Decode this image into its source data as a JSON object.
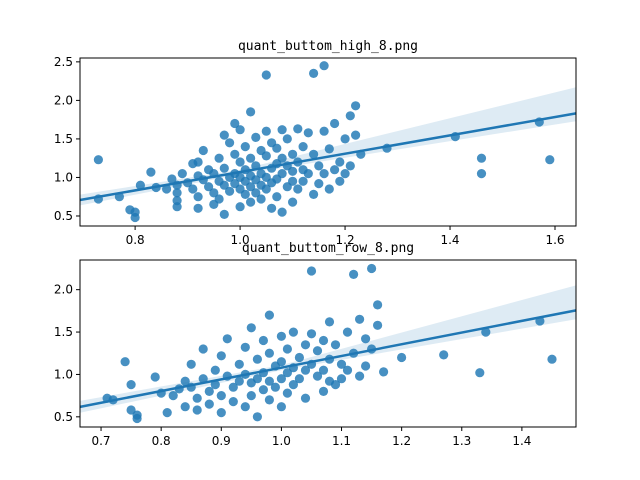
{
  "chart_data": [
    {
      "type": "scatter",
      "title": "quant_buttom_high_8.png",
      "xlabel": "",
      "ylabel": "",
      "xlim": [
        0.695,
        1.64
      ],
      "ylim": [
        0.37,
        2.55
      ],
      "xticks": [
        0.8,
        1.0,
        1.2,
        1.4,
        1.6
      ],
      "xtick_labels": [
        "0.8",
        "1.0",
        "1.2",
        "1.4",
        "1.6"
      ],
      "yticks": [
        0.5,
        1.0,
        1.5,
        2.0,
        2.5
      ],
      "ytick_labels": [
        "0.5",
        "1.0",
        "1.5",
        "2.0",
        "2.5"
      ],
      "grid": false,
      "regression": {
        "slope": 1.19,
        "intercept": -0.12,
        "ci_low_end": 1.73,
        "ci_high_end": 2.17
      },
      "series": [
        {
          "color": "#1f77b4",
          "points": [
            [
              0.73,
              1.23
            ],
            [
              0.73,
              0.72
            ],
            [
              0.77,
              0.75
            ],
            [
              0.79,
              0.58
            ],
            [
              0.8,
              0.55
            ],
            [
              0.8,
              0.48
            ],
            [
              0.81,
              0.9
            ],
            [
              0.83,
              1.07
            ],
            [
              0.84,
              0.87
            ],
            [
              0.86,
              0.85
            ],
            [
              0.87,
              0.98
            ],
            [
              0.88,
              0.9
            ],
            [
              0.88,
              0.8
            ],
            [
              0.88,
              0.7
            ],
            [
              0.88,
              0.62
            ],
            [
              0.89,
              1.05
            ],
            [
              0.9,
              0.93
            ],
            [
              0.91,
              1.18
            ],
            [
              0.91,
              0.85
            ],
            [
              0.92,
              1.2
            ],
            [
              0.92,
              1.02
            ],
            [
              0.92,
              0.75
            ],
            [
              0.92,
              0.6
            ],
            [
              0.93,
              1.35
            ],
            [
              0.93,
              0.97
            ],
            [
              0.94,
              1.1
            ],
            [
              0.94,
              0.88
            ],
            [
              0.95,
              1.05
            ],
            [
              0.95,
              0.8
            ],
            [
              0.95,
              0.65
            ],
            [
              0.96,
              1.25
            ],
            [
              0.96,
              0.95
            ],
            [
              0.96,
              0.72
            ],
            [
              0.97,
              1.55
            ],
            [
              0.97,
              1.12
            ],
            [
              0.97,
              0.9
            ],
            [
              0.97,
              0.52
            ],
            [
              0.98,
              1.45
            ],
            [
              0.98,
              1.0
            ],
            [
              0.98,
              0.82
            ],
            [
              0.99,
              1.7
            ],
            [
              0.99,
              1.3
            ],
            [
              0.99,
              1.05
            ],
            [
              0.99,
              0.92
            ],
            [
              1.0,
              1.62
            ],
            [
              1.0,
              1.2
            ],
            [
              1.0,
              1.0
            ],
            [
              1.0,
              0.85
            ],
            [
              1.0,
              0.62
            ],
            [
              1.01,
              1.4
            ],
            [
              1.01,
              1.1
            ],
            [
              1.01,
              0.95
            ],
            [
              1.01,
              0.78
            ],
            [
              1.02,
              1.85
            ],
            [
              1.02,
              1.25
            ],
            [
              1.02,
              1.02
            ],
            [
              1.02,
              0.88
            ],
            [
              1.02,
              0.68
            ],
            [
              1.03,
              1.52
            ],
            [
              1.03,
              1.15
            ],
            [
              1.03,
              0.97
            ],
            [
              1.03,
              0.8
            ],
            [
              1.04,
              1.35
            ],
            [
              1.04,
              1.05
            ],
            [
              1.04,
              0.9
            ],
            [
              1.04,
              0.72
            ],
            [
              1.05,
              2.33
            ],
            [
              1.05,
              1.6
            ],
            [
              1.05,
              1.28
            ],
            [
              1.05,
              1.0
            ],
            [
              1.05,
              0.85
            ],
            [
              1.06,
              1.45
            ],
            [
              1.06,
              1.12
            ],
            [
              1.06,
              0.93
            ],
            [
              1.06,
              0.6
            ],
            [
              1.07,
              1.38
            ],
            [
              1.07,
              1.18
            ],
            [
              1.07,
              0.98
            ],
            [
              1.07,
              0.75
            ],
            [
              1.08,
              1.62
            ],
            [
              1.08,
              1.25
            ],
            [
              1.08,
              1.05
            ],
            [
              1.08,
              0.55
            ],
            [
              1.09,
              1.5
            ],
            [
              1.09,
              1.15
            ],
            [
              1.09,
              0.88
            ],
            [
              1.1,
              1.3
            ],
            [
              1.1,
              1.08
            ],
            [
              1.1,
              0.95
            ],
            [
              1.1,
              0.68
            ],
            [
              1.11,
              1.63
            ],
            [
              1.11,
              1.2
            ],
            [
              1.11,
              0.85
            ],
            [
              1.12,
              1.4
            ],
            [
              1.12,
              1.1
            ],
            [
              1.12,
              0.95
            ],
            [
              1.13,
              1.58
            ],
            [
              1.13,
              1.05
            ],
            [
              1.14,
              2.35
            ],
            [
              1.14,
              1.3
            ],
            [
              1.14,
              0.78
            ],
            [
              1.15,
              1.15
            ],
            [
              1.15,
              0.92
            ],
            [
              1.16,
              2.45
            ],
            [
              1.16,
              1.6
            ],
            [
              1.16,
              1.05
            ],
            [
              1.17,
              1.37
            ],
            [
              1.17,
              0.85
            ],
            [
              1.18,
              1.7
            ],
            [
              1.18,
              1.1
            ],
            [
              1.19,
              1.2
            ],
            [
              1.19,
              0.95
            ],
            [
              1.2,
              1.5
            ],
            [
              1.2,
              1.05
            ],
            [
              1.21,
              1.8
            ],
            [
              1.21,
              1.15
            ],
            [
              1.22,
              1.93
            ],
            [
              1.22,
              1.55
            ],
            [
              1.23,
              1.3
            ],
            [
              1.28,
              1.38
            ],
            [
              1.41,
              1.53
            ],
            [
              1.46,
              1.25
            ],
            [
              1.46,
              1.05
            ],
            [
              1.57,
              1.72
            ],
            [
              1.59,
              1.23
            ]
          ]
        }
      ]
    },
    {
      "type": "scatter",
      "title": "quant_buttom_row_8.png",
      "xlabel": "",
      "ylabel": "",
      "xlim": [
        0.665,
        1.49
      ],
      "ylim": [
        0.38,
        2.35
      ],
      "xticks": [
        0.7,
        0.8,
        0.9,
        1.0,
        1.1,
        1.2,
        1.3,
        1.4
      ],
      "xtick_labels": [
        "0.7",
        "0.8",
        "0.9",
        "1.0",
        "1.1",
        "1.2",
        "1.3",
        "1.4"
      ],
      "yticks": [
        0.5,
        1.0,
        1.5,
        2.0
      ],
      "ytick_labels": [
        "0.5",
        "1.0",
        "1.5",
        "2.0"
      ],
      "grid": false,
      "regression": {
        "slope": 1.38,
        "intercept": -0.3,
        "ci_low_end": 1.65,
        "ci_high_end": 2.05
      },
      "series": [
        {
          "color": "#1f77b4",
          "points": [
            [
              0.71,
              0.72
            ],
            [
              0.72,
              0.7
            ],
            [
              0.74,
              1.15
            ],
            [
              0.75,
              0.88
            ],
            [
              0.75,
              0.58
            ],
            [
              0.76,
              0.52
            ],
            [
              0.76,
              0.48
            ],
            [
              0.79,
              0.97
            ],
            [
              0.8,
              0.78
            ],
            [
              0.81,
              0.55
            ],
            [
              0.82,
              0.75
            ],
            [
              0.83,
              0.83
            ],
            [
              0.84,
              0.92
            ],
            [
              0.84,
              0.62
            ],
            [
              0.85,
              1.12
            ],
            [
              0.85,
              0.85
            ],
            [
              0.86,
              0.72
            ],
            [
              0.86,
              0.58
            ],
            [
              0.87,
              0.95
            ],
            [
              0.87,
              1.3
            ],
            [
              0.88,
              0.8
            ],
            [
              0.88,
              0.65
            ],
            [
              0.89,
              1.05
            ],
            [
              0.89,
              0.88
            ],
            [
              0.9,
              1.22
            ],
            [
              0.9,
              0.75
            ],
            [
              0.9,
              0.55
            ],
            [
              0.91,
              1.42
            ],
            [
              0.91,
              0.98
            ],
            [
              0.92,
              0.85
            ],
            [
              0.92,
              0.68
            ],
            [
              0.93,
              1.12
            ],
            [
              0.93,
              0.92
            ],
            [
              0.94,
              1.32
            ],
            [
              0.94,
              1.0
            ],
            [
              0.94,
              0.62
            ],
            [
              0.95,
              1.55
            ],
            [
              0.95,
              0.9
            ],
            [
              0.95,
              0.75
            ],
            [
              0.96,
              1.18
            ],
            [
              0.96,
              0.95
            ],
            [
              0.96,
              0.5
            ],
            [
              0.97,
              1.4
            ],
            [
              0.97,
              1.02
            ],
            [
              0.97,
              0.82
            ],
            [
              0.98,
              1.7
            ],
            [
              0.98,
              1.25
            ],
            [
              0.98,
              0.92
            ],
            [
              0.98,
              0.7
            ],
            [
              0.99,
              1.1
            ],
            [
              0.99,
              0.85
            ],
            [
              1.0,
              1.45
            ],
            [
              1.0,
              1.15
            ],
            [
              1.0,
              0.95
            ],
            [
              1.0,
              0.62
            ],
            [
              1.01,
              1.3
            ],
            [
              1.01,
              1.02
            ],
            [
              1.01,
              0.78
            ],
            [
              1.02,
              1.5
            ],
            [
              1.02,
              1.08
            ],
            [
              1.02,
              0.88
            ],
            [
              1.03,
              1.2
            ],
            [
              1.03,
              0.95
            ],
            [
              1.04,
              1.35
            ],
            [
              1.04,
              1.05
            ],
            [
              1.04,
              0.72
            ],
            [
              1.05,
              2.22
            ],
            [
              1.05,
              1.48
            ],
            [
              1.05,
              1.12
            ],
            [
              1.06,
              1.28
            ],
            [
              1.06,
              0.98
            ],
            [
              1.07,
              1.4
            ],
            [
              1.07,
              1.05
            ],
            [
              1.07,
              0.8
            ],
            [
              1.08,
              1.62
            ],
            [
              1.08,
              1.18
            ],
            [
              1.08,
              0.92
            ],
            [
              1.09,
              1.35
            ],
            [
              1.09,
              0.88
            ],
            [
              1.1,
              1.12
            ],
            [
              1.1,
              0.95
            ],
            [
              1.11,
              1.5
            ],
            [
              1.11,
              1.05
            ],
            [
              1.12,
              2.18
            ],
            [
              1.12,
              1.25
            ],
            [
              1.13,
              1.65
            ],
            [
              1.13,
              0.98
            ],
            [
              1.14,
              1.42
            ],
            [
              1.14,
              1.1
            ],
            [
              1.15,
              2.25
            ],
            [
              1.15,
              1.3
            ],
            [
              1.16,
              1.82
            ],
            [
              1.16,
              1.58
            ],
            [
              1.17,
              1.03
            ],
            [
              1.2,
              1.2
            ],
            [
              1.27,
              1.23
            ],
            [
              1.33,
              1.02
            ],
            [
              1.34,
              1.5
            ],
            [
              1.43,
              1.63
            ],
            [
              1.45,
              1.18
            ]
          ]
        }
      ]
    }
  ]
}
